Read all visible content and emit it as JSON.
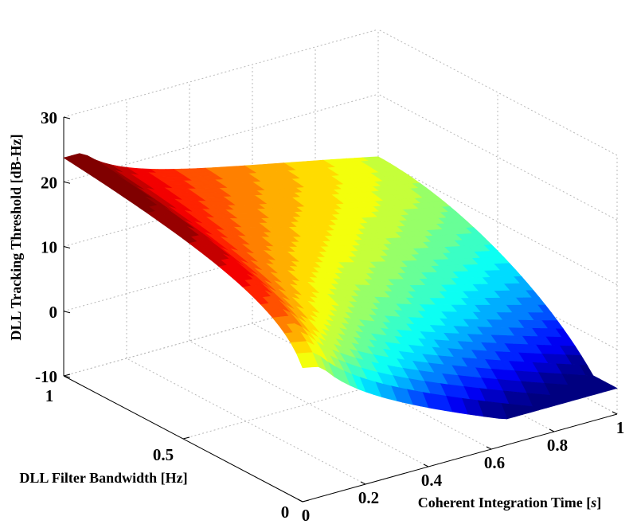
{
  "chart_data": {
    "type": "surface",
    "x_axis": {
      "label_text": "Coherent Integration Time [",
      "label_unit": "s",
      "label_close": "]",
      "ticks": [
        "0",
        "0.2",
        "0.4",
        "0.6",
        "0.8",
        "1"
      ],
      "range": [
        0,
        1
      ]
    },
    "y_axis": {
      "label": "DLL Filter Bandwidth [Hz]",
      "ticks": [
        "0",
        "0.5",
        "1"
      ],
      "range": [
        0,
        1
      ]
    },
    "z_axis": {
      "label": "DLL Tracking Threshold [dB-Hz]",
      "ticks": [
        "-10",
        "0",
        "10",
        "20",
        "30"
      ],
      "range": [
        -10,
        30
      ]
    },
    "grid": true,
    "colormap": "jet",
    "color_range": [
      -5,
      22
    ],
    "surface_description_values": {
      "x_range": [
        0.02,
        1
      ],
      "y_range": [
        0.05,
        1
      ]
    }
  }
}
